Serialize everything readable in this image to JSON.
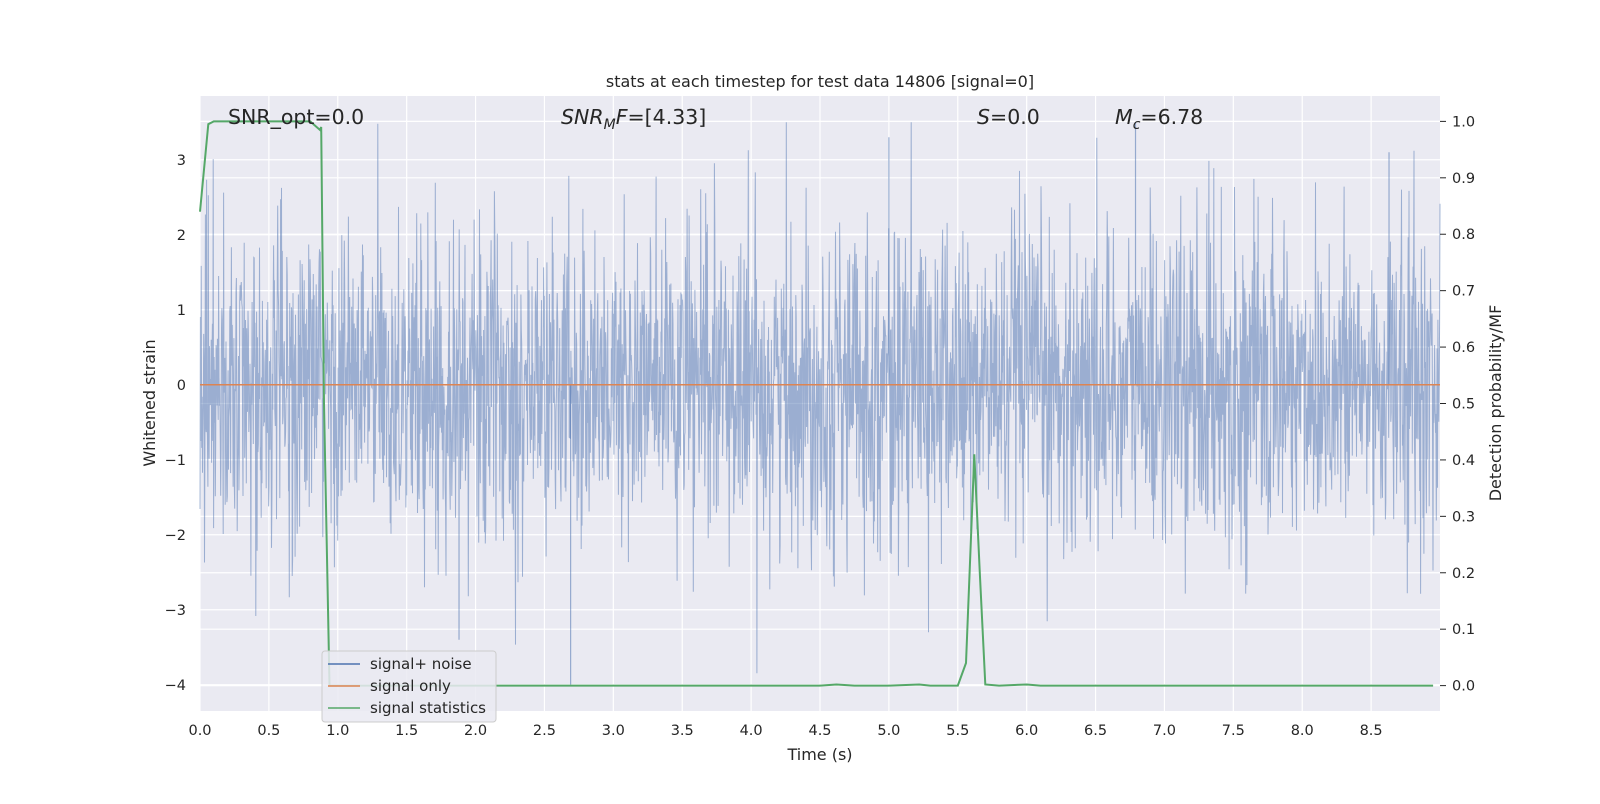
{
  "chart_data": {
    "type": "line",
    "title": "stats at each timestep for test data 14806 [signal=0]",
    "xlabel": "Time (s)",
    "ylabel": "Whitened strain",
    "y2label": "Detection probability/MF",
    "xlim": [
      0.0,
      9.0
    ],
    "ylim": [
      -4.35,
      3.85
    ],
    "y2lim": [
      -0.045,
      1.045
    ],
    "grid": true,
    "legend_position": "lower-left",
    "x_ticks": [
      "0.0",
      "0.5",
      "1.0",
      "1.5",
      "2.0",
      "2.5",
      "3.0",
      "3.5",
      "4.0",
      "4.5",
      "5.0",
      "5.5",
      "6.0",
      "6.5",
      "7.0",
      "7.5",
      "8.0",
      "8.5"
    ],
    "y_ticks": [
      "3",
      "2",
      "1",
      "0",
      "−1",
      "−2",
      "−3",
      "−4"
    ],
    "y2_ticks": [
      "1.0",
      "0.9",
      "0.8",
      "0.7",
      "0.6",
      "0.5",
      "0.4",
      "0.3",
      "0.2",
      "0.1",
      "0.0"
    ],
    "annotations": {
      "snr_opt": "SNR_opt=0.0",
      "snr_mf": "=[4.33]",
      "s_stat": "=0.0",
      "chirp_mass": "=6.78"
    },
    "series": [
      {
        "name": "signal+ noise",
        "color": "#4c72b0",
        "axis": "left",
        "description_of_values": "whitened strain noise samples spanning 0–9 s",
        "envelope_typical": [
          -1.7,
          1.7
        ],
        "envelope_extreme": [
          -4.0,
          3.5
        ],
        "notable_spikes": [
          {
            "x": 2.69,
            "y": -4.0
          },
          {
            "x": 1.88,
            "y": -3.4
          },
          {
            "x": 5.0,
            "y": 3.3
          },
          {
            "x": 6.79,
            "y": 3.5
          },
          {
            "x": 8.63,
            "y": 3.1
          }
        ]
      },
      {
        "name": "signal only",
        "color": "#dd8452",
        "axis": "left",
        "x": [
          0.0,
          9.0
        ],
        "y": [
          0.0,
          0.0
        ]
      },
      {
        "name": "signal statistics",
        "color": "#55a868",
        "axis": "right",
        "x": [
          0.0,
          0.06,
          0.1,
          0.2,
          0.4,
          0.6,
          0.8,
          0.87,
          0.88,
          0.9,
          0.94,
          1.0,
          2.0,
          3.0,
          4.0,
          4.5,
          4.62,
          4.75,
          5.0,
          5.22,
          5.3,
          5.5,
          5.56,
          5.62,
          5.66,
          5.7,
          5.8,
          6.0,
          6.1,
          6.5,
          7.0,
          8.0,
          8.95
        ],
        "y": [
          0.84,
          0.995,
          1.0,
          1.0,
          1.0,
          1.0,
          1.0,
          0.985,
          0.99,
          0.5,
          0.0,
          0.0,
          0.0,
          0.0,
          0.0,
          0.0,
          0.002,
          0.0,
          0.0,
          0.002,
          0.0,
          0.0,
          0.04,
          0.41,
          0.2,
          0.002,
          0.0,
          0.002,
          0.0,
          0.0,
          0.0,
          0.0,
          0.0
        ]
      }
    ]
  }
}
